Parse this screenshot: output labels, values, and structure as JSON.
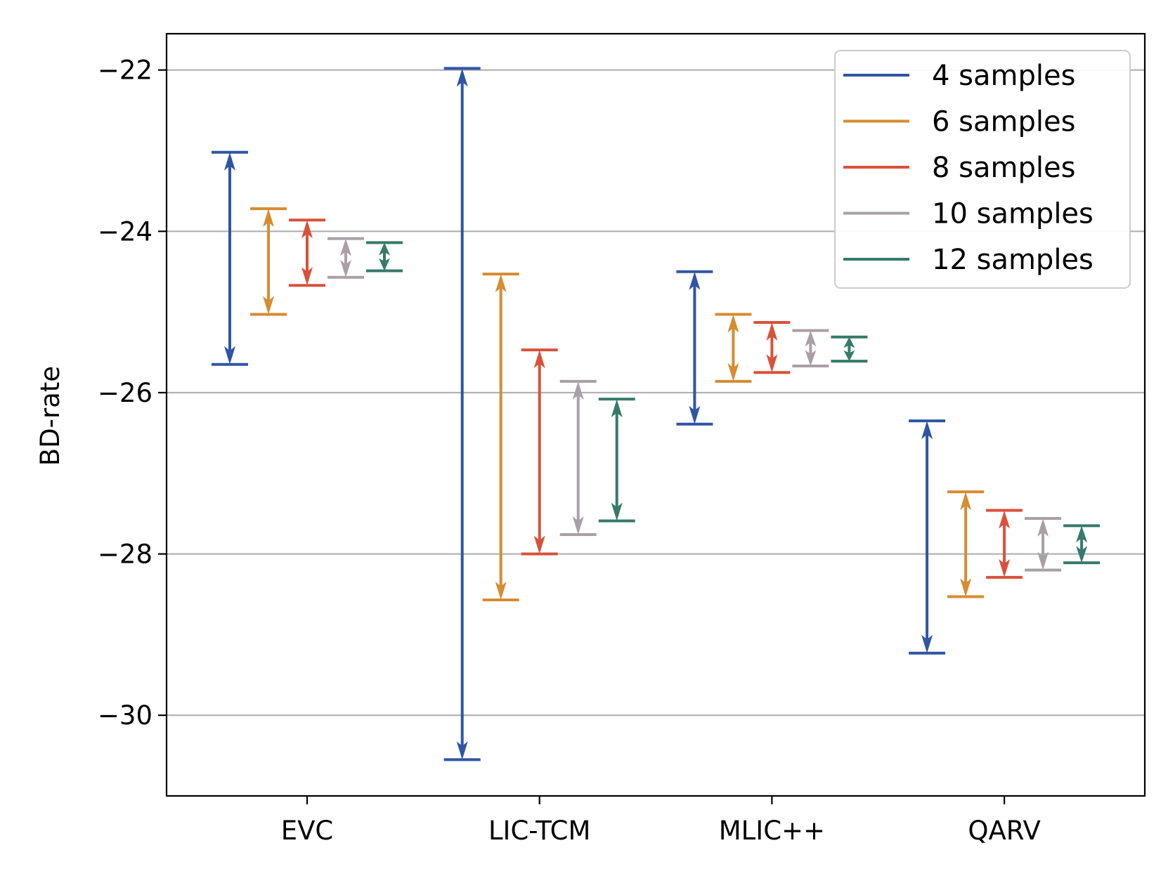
{
  "chart_data": {
    "type": "range-errorbar",
    "title": "",
    "xlabel": "",
    "ylabel": "BD-rate",
    "ylim": [
      -31.0,
      -21.55
    ],
    "yticks": [
      -22,
      -24,
      -26,
      -28,
      -30
    ],
    "ytick_labels": [
      "−22",
      "−24",
      "−26",
      "−28",
      "−30"
    ],
    "grid": "horizontal",
    "legend_position": "top-right",
    "categories": [
      "EVC",
      "LIC-TCM",
      "MLIC++",
      "QARV"
    ],
    "series": [
      {
        "name": "4 samples",
        "color": "#2f55a4",
        "ranges": [
          [
            -25.65,
            -23.02
          ],
          [
            -30.55,
            -21.98
          ],
          [
            -26.39,
            -24.5
          ],
          [
            -29.23,
            -26.35
          ]
        ]
      },
      {
        "name": "6 samples",
        "color": "#d68c31",
        "ranges": [
          [
            -25.03,
            -23.72
          ],
          [
            -28.57,
            -24.53
          ],
          [
            -25.86,
            -25.03
          ],
          [
            -28.53,
            -27.23
          ]
        ]
      },
      {
        "name": "8 samples",
        "color": "#d9513a",
        "ranges": [
          [
            -24.67,
            -23.86
          ],
          [
            -28.0,
            -25.47
          ],
          [
            -25.75,
            -25.13
          ],
          [
            -28.29,
            -27.46
          ]
        ]
      },
      {
        "name": "10 samples",
        "color": "#aa9fa6",
        "ranges": [
          [
            -24.57,
            -24.09
          ],
          [
            -27.76,
            -25.86
          ],
          [
            -25.67,
            -25.23
          ],
          [
            -28.2,
            -27.56
          ]
        ]
      },
      {
        "name": "12 samples",
        "color": "#357a6a",
        "ranges": [
          [
            -24.49,
            -24.14
          ],
          [
            -27.59,
            -26.08
          ],
          [
            -25.61,
            -25.31
          ],
          [
            -28.11,
            -27.65
          ]
        ]
      }
    ]
  }
}
